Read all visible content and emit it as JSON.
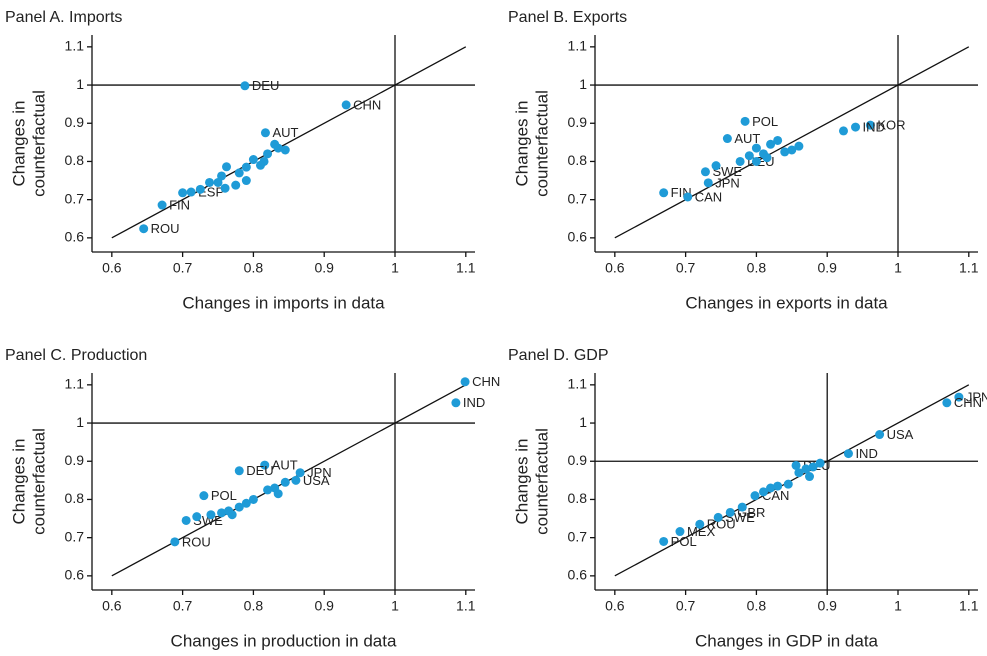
{
  "chart_data": [
    {
      "type": "scatter",
      "title": "Panel A. Imports",
      "x_label": "Changes in imports in data",
      "y_label": [
        "Changes in",
        "counterfactual"
      ],
      "color": "#1f9bd7",
      "x": [
        0.788,
        0.931,
        0.817,
        0.671,
        0.645,
        0.7,
        0.712,
        0.725,
        0.738,
        0.75,
        0.755,
        0.762,
        0.78,
        0.79,
        0.8,
        0.815,
        0.82,
        0.83,
        0.835,
        0.845,
        0.79,
        0.775,
        0.76,
        0.81
      ],
      "values": [
        0.998,
        0.948,
        0.875,
        0.686,
        0.624,
        0.718,
        0.72,
        0.727,
        0.745,
        0.745,
        0.762,
        0.786,
        0.77,
        0.785,
        0.805,
        0.8,
        0.82,
        0.845,
        0.835,
        0.83,
        0.75,
        0.738,
        0.73,
        0.79
      ],
      "labels": [
        "DEU",
        "CHN",
        "AUT",
        "FIN",
        "ROU",
        null,
        "ESP",
        null,
        null,
        null,
        null,
        null,
        null,
        null,
        null,
        null,
        null,
        null,
        null,
        null,
        null,
        null,
        null,
        null
      ],
      "xlim": [
        0.572,
        1.113
      ],
      "ylim": [
        0.563,
        1.131
      ],
      "xticks": [
        0.6,
        0.7,
        0.8,
        0.9,
        1,
        1.1
      ],
      "yticks": [
        0.6,
        0.7,
        0.8,
        0.9,
        1,
        1.1
      ],
      "hline": 1,
      "vline": 1,
      "diagonal": [
        0.6,
        1.1
      ]
    },
    {
      "type": "scatter",
      "title": "Panel B. Exports",
      "x_label": "Changes in exports in data",
      "y_label": [
        "Changes in",
        "counterfactual"
      ],
      "color": "#1f9bd7",
      "x": [
        0.784,
        0.759,
        0.961,
        0.94,
        0.923,
        0.669,
        0.703,
        0.732,
        0.728,
        0.743,
        0.777,
        0.8,
        0.81,
        0.82,
        0.83,
        0.84,
        0.79,
        0.815,
        0.85,
        0.86,
        0.8
      ],
      "values": [
        0.905,
        0.86,
        0.895,
        0.89,
        0.88,
        0.718,
        0.707,
        0.744,
        0.773,
        0.789,
        0.8,
        0.835,
        0.82,
        0.845,
        0.855,
        0.825,
        0.815,
        0.81,
        0.83,
        0.84,
        0.8
      ],
      "labels": [
        "POL",
        "AUT",
        "KOR",
        "IND",
        null,
        "FIN",
        "CAN",
        "JPN",
        "SWE",
        null,
        "DEU",
        null,
        null,
        null,
        null,
        null,
        null,
        null,
        null,
        null,
        null
      ],
      "xlim": [
        0.572,
        1.113
      ],
      "ylim": [
        0.563,
        1.131
      ],
      "xticks": [
        0.6,
        0.7,
        0.8,
        0.9,
        1,
        1.1
      ],
      "yticks": [
        0.6,
        0.7,
        0.8,
        0.9,
        1,
        1.1
      ],
      "hline": 1,
      "vline": 1,
      "diagonal": [
        0.6,
        1.1
      ]
    },
    {
      "type": "scatter",
      "title": "Panel C. Production",
      "x_label": "Changes in production in data",
      "y_label": [
        "Changes in",
        "counterfactual"
      ],
      "color": "#1f9bd7",
      "x": [
        1.099,
        1.086,
        0.816,
        0.78,
        0.866,
        0.86,
        0.73,
        0.689,
        0.705,
        0.72,
        0.74,
        0.755,
        0.765,
        0.78,
        0.79,
        0.8,
        0.82,
        0.83,
        0.845,
        0.835,
        0.77
      ],
      "values": [
        1.108,
        1.053,
        0.89,
        0.875,
        0.87,
        0.85,
        0.81,
        0.689,
        0.745,
        0.755,
        0.76,
        0.765,
        0.77,
        0.78,
        0.79,
        0.8,
        0.825,
        0.83,
        0.845,
        0.815,
        0.76
      ],
      "labels": [
        "CHN",
        "IND",
        "AUT",
        "DEU",
        "JPN",
        "USA",
        "POL",
        "ROU",
        "SWE",
        null,
        null,
        null,
        null,
        null,
        null,
        null,
        null,
        null,
        null,
        null,
        null
      ],
      "xlim": [
        0.572,
        1.113
      ],
      "ylim": [
        0.563,
        1.131
      ],
      "xticks": [
        0.6,
        0.7,
        0.8,
        0.9,
        1,
        1.1
      ],
      "yticks": [
        0.6,
        0.7,
        0.8,
        0.9,
        1,
        1.1
      ],
      "hline": 1,
      "vline": 1,
      "diagonal": [
        0.6,
        1.1
      ]
    },
    {
      "type": "scatter",
      "title": "Panel D. GDP",
      "x_label": "Changes in GDP in data",
      "y_label": [
        "Changes in",
        "counterfactual"
      ],
      "color": "#1f9bd7",
      "x": [
        1.086,
        1.069,
        0.974,
        0.93,
        0.669,
        0.692,
        0.72,
        0.746,
        0.763,
        0.798,
        0.856,
        0.78,
        0.81,
        0.82,
        0.83,
        0.845,
        0.86,
        0.87,
        0.88,
        0.89,
        0.875
      ],
      "values": [
        1.068,
        1.053,
        0.97,
        0.92,
        0.69,
        0.716,
        0.735,
        0.753,
        0.766,
        0.81,
        0.889,
        0.78,
        0.82,
        0.83,
        0.835,
        0.84,
        0.87,
        0.88,
        0.885,
        0.895,
        0.86
      ],
      "labels": [
        "JPN",
        "CHN",
        "USA",
        "IND",
        "POL",
        "MEX",
        "ROU",
        "SWE",
        "GBR",
        "CAN",
        "DEU",
        null,
        null,
        null,
        null,
        null,
        null,
        null,
        null,
        null,
        null
      ],
      "xlim": [
        0.572,
        1.113
      ],
      "ylim": [
        0.563,
        1.131
      ],
      "xticks": [
        0.6,
        0.7,
        0.8,
        0.9,
        1,
        1.1
      ],
      "yticks": [
        0.6,
        0.7,
        0.8,
        0.9,
        1,
        1.1
      ],
      "hline": 0.9,
      "vline": 0.9,
      "diagonal": [
        0.6,
        1.1
      ]
    }
  ]
}
